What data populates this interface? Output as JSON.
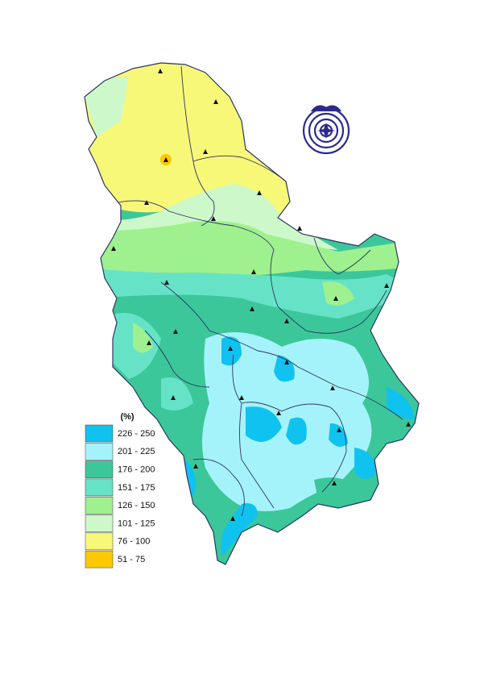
{
  "legend": {
    "title": "(%)",
    "items": [
      {
        "label": "226 - 250",
        "color": "#10c2ef"
      },
      {
        "label": "201 - 225",
        "color": "#a5f3fa"
      },
      {
        "label": "176 - 200",
        "color": "#3cc79a"
      },
      {
        "label": "151 - 175",
        "color": "#66e3c6"
      },
      {
        "label": "126 - 150",
        "color": "#9ff08e"
      },
      {
        "label": "101 - 125",
        "color": "#cdf8c9"
      },
      {
        "label": "76 - 100",
        "color": "#f8f878"
      },
      {
        "label": "51 - 75",
        "color": "#fcc800"
      }
    ]
  }
}
